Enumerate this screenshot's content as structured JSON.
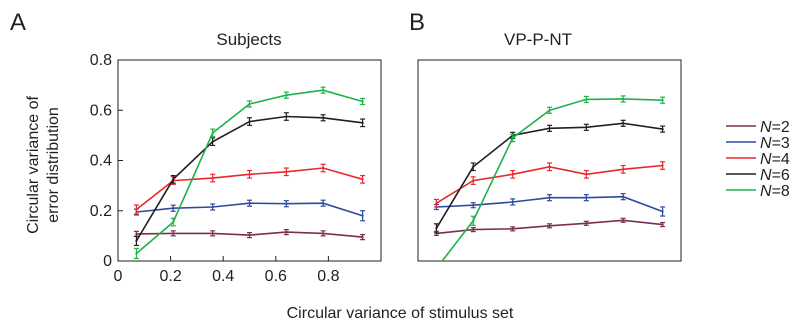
{
  "chart_data": [
    {
      "type": "line",
      "panel_letter": "A",
      "title": "Subjects",
      "xlabel": "Circular variance of stimulus set",
      "ylabel": "Circular variance of\nerror distribution",
      "xlim": [
        0,
        1
      ],
      "ylim": [
        0,
        0.8
      ],
      "x_ticks": [
        0,
        0.2,
        0.4,
        0.6,
        0.8
      ],
      "y_ticks": [
        0,
        0.2,
        0.4,
        0.6,
        0.8
      ],
      "grid": false,
      "x": [
        0.07,
        0.21,
        0.36,
        0.5,
        0.64,
        0.78,
        0.93
      ],
      "series": [
        {
          "name": "N=2",
          "color": "#7b2d52",
          "values": [
            0.108,
            0.11,
            0.11,
            0.103,
            0.115,
            0.11,
            0.095
          ],
          "errors": [
            0.01,
            0.01,
            0.01,
            0.01,
            0.01,
            0.01,
            0.01
          ]
        },
        {
          "name": "N=3",
          "color": "#2e4a9e",
          "values": [
            0.195,
            0.21,
            0.215,
            0.23,
            0.228,
            0.23,
            0.18
          ],
          "errors": [
            0.012,
            0.012,
            0.012,
            0.012,
            0.012,
            0.012,
            0.02
          ]
        },
        {
          "name": "N=4",
          "color": "#e8282b",
          "values": [
            0.205,
            0.32,
            0.33,
            0.345,
            0.355,
            0.37,
            0.325
          ],
          "errors": [
            0.018,
            0.015,
            0.015,
            0.015,
            0.015,
            0.015,
            0.015
          ]
        },
        {
          "name": "N=6",
          "color": "#231f20",
          "values": [
            0.08,
            0.325,
            0.475,
            0.555,
            0.575,
            0.57,
            0.55
          ],
          "errors": [
            0.018,
            0.015,
            0.015,
            0.015,
            0.015,
            0.012,
            0.015
          ]
        },
        {
          "name": "N=8",
          "color": "#1fb24a",
          "values": [
            0.03,
            0.155,
            0.51,
            0.625,
            0.66,
            0.68,
            0.635
          ],
          "errors": [
            0.02,
            0.015,
            0.015,
            0.012,
            0.012,
            0.012,
            0.012
          ]
        }
      ]
    },
    {
      "type": "line",
      "panel_letter": "B",
      "title": "VP-P-NT",
      "xlim": [
        0,
        1
      ],
      "ylim": [
        0,
        0.8
      ],
      "grid": false,
      "x": [
        0.07,
        0.21,
        0.36,
        0.5,
        0.64,
        0.78,
        0.93
      ],
      "series": [
        {
          "name": "N=2",
          "color": "#7b2d52",
          "values": [
            0.11,
            0.125,
            0.128,
            0.14,
            0.15,
            0.162,
            0.145
          ],
          "errors": [
            0.008,
            0.008,
            0.008,
            0.008,
            0.008,
            0.008,
            0.008
          ]
        },
        {
          "name": "N=3",
          "color": "#2e4a9e",
          "values": [
            0.215,
            0.222,
            0.235,
            0.252,
            0.252,
            0.256,
            0.197
          ],
          "errors": [
            0.01,
            0.01,
            0.012,
            0.012,
            0.012,
            0.012,
            0.018
          ]
        },
        {
          "name": "N=4",
          "color": "#e8282b",
          "values": [
            0.23,
            0.32,
            0.345,
            0.375,
            0.345,
            0.365,
            0.38
          ],
          "errors": [
            0.015,
            0.015,
            0.015,
            0.015,
            0.015,
            0.015,
            0.015
          ]
        },
        {
          "name": "N=6",
          "color": "#231f20",
          "values": [
            0.13,
            0.375,
            0.5,
            0.528,
            0.532,
            0.548,
            0.525
          ],
          "errors": [
            0.018,
            0.015,
            0.012,
            0.012,
            0.012,
            0.012,
            0.012
          ]
        },
        {
          "name": "N=8",
          "color": "#1fb24a",
          "values": [
            -0.03,
            0.16,
            0.49,
            0.6,
            0.643,
            0.645,
            0.64
          ],
          "errors": [
            0.02,
            0.018,
            0.015,
            0.012,
            0.012,
            0.012,
            0.012
          ]
        }
      ]
    }
  ],
  "legend": {
    "placement": "right",
    "entries": [
      {
        "prefix": "N",
        "suffix": "=2",
        "color": "#7b2d52"
      },
      {
        "prefix": "N",
        "suffix": "=3",
        "color": "#2e4a9e"
      },
      {
        "prefix": "N",
        "suffix": "=4",
        "color": "#e8282b"
      },
      {
        "prefix": "N",
        "suffix": "=6",
        "color": "#231f20"
      },
      {
        "prefix": "N",
        "suffix": "=8",
        "color": "#1fb24a"
      }
    ]
  }
}
